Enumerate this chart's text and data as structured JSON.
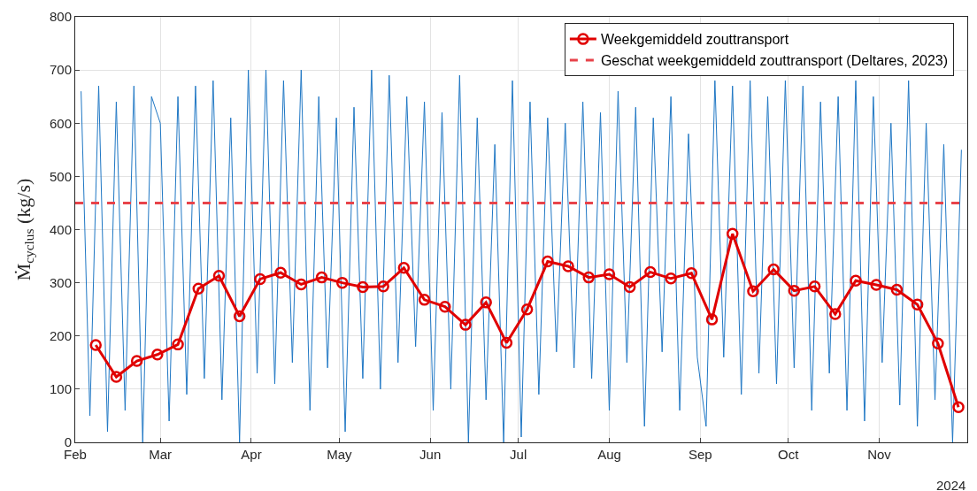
{
  "chart_data": {
    "type": "line",
    "ylabel": "Ṁ$_{cyclus}$ (kg/s)",
    "annotations": [
      "2024"
    ],
    "xlim": [
      "2024-02-01",
      "2024-12-01"
    ],
    "xticks": [
      {
        "value": "2024-02-01",
        "label": "Feb"
      },
      {
        "value": "2024-03-01",
        "label": "Mar"
      },
      {
        "value": "2024-04-01",
        "label": "Apr"
      },
      {
        "value": "2024-05-01",
        "label": "May"
      },
      {
        "value": "2024-06-01",
        "label": "Jun"
      },
      {
        "value": "2024-07-01",
        "label": "Jul"
      },
      {
        "value": "2024-08-01",
        "label": "Aug"
      },
      {
        "value": "2024-09-01",
        "label": "Sep"
      },
      {
        "value": "2024-10-01",
        "label": "Oct"
      },
      {
        "value": "2024-11-01",
        "label": "Nov"
      }
    ],
    "ylim": [
      0,
      800
    ],
    "yticks": [
      0,
      100,
      200,
      300,
      400,
      500,
      600,
      700,
      800
    ],
    "grid": true,
    "legend": "top right",
    "series": [
      {
        "color": "#1f77c4",
        "marker": "none",
        "x": [
          "2024-02-03",
          "2024-02-06",
          "2024-02-09",
          "2024-02-12",
          "2024-02-15",
          "2024-02-18",
          "2024-02-21",
          "2024-02-24",
          "2024-02-27",
          "2024-03-01",
          "2024-03-04",
          "2024-03-07",
          "2024-03-10",
          "2024-03-13",
          "2024-03-16",
          "2024-03-19",
          "2024-03-22",
          "2024-03-25",
          "2024-03-28",
          "2024-03-31",
          "2024-04-03",
          "2024-04-06",
          "2024-04-09",
          "2024-04-12",
          "2024-04-15",
          "2024-04-18",
          "2024-04-21",
          "2024-04-24",
          "2024-04-27",
          "2024-04-30",
          "2024-05-03",
          "2024-05-06",
          "2024-05-09",
          "2024-05-12",
          "2024-05-15",
          "2024-05-18",
          "2024-05-21",
          "2024-05-24",
          "2024-05-27",
          "2024-05-30",
          "2024-06-02",
          "2024-06-05",
          "2024-06-08",
          "2024-06-11",
          "2024-06-14",
          "2024-06-17",
          "2024-06-20",
          "2024-06-23",
          "2024-06-26",
          "2024-06-29",
          "2024-07-02",
          "2024-07-05",
          "2024-07-08",
          "2024-07-11",
          "2024-07-14",
          "2024-07-17",
          "2024-07-20",
          "2024-07-23",
          "2024-07-26",
          "2024-07-29",
          "2024-08-01",
          "2024-08-04",
          "2024-08-07",
          "2024-08-10",
          "2024-08-13",
          "2024-08-16",
          "2024-08-19",
          "2024-08-22",
          "2024-08-25",
          "2024-08-28",
          "2024-08-31",
          "2024-09-03",
          "2024-09-06",
          "2024-09-09",
          "2024-09-12",
          "2024-09-15",
          "2024-09-18",
          "2024-09-21",
          "2024-09-24",
          "2024-09-27",
          "2024-09-30",
          "2024-10-03",
          "2024-10-06",
          "2024-10-09",
          "2024-10-12",
          "2024-10-15",
          "2024-10-18",
          "2024-10-21",
          "2024-10-24",
          "2024-10-27",
          "2024-10-30",
          "2024-11-02",
          "2024-11-05",
          "2024-11-08",
          "2024-11-11",
          "2024-11-14",
          "2024-11-17",
          "2024-11-20",
          "2024-11-23",
          "2024-11-26",
          "2024-11-29"
        ],
        "values": [
          660,
          50,
          670,
          20,
          640,
          60,
          670,
          0,
          650,
          600,
          40,
          650,
          90,
          670,
          120,
          680,
          80,
          610,
          0,
          700,
          130,
          700,
          110,
          680,
          150,
          700,
          60,
          650,
          140,
          610,
          20,
          630,
          120,
          700,
          100,
          690,
          150,
          650,
          180,
          640,
          60,
          620,
          100,
          690,
          0,
          610,
          80,
          560,
          0,
          680,
          10,
          640,
          90,
          610,
          170,
          600,
          140,
          640,
          120,
          620,
          60,
          660,
          150,
          630,
          30,
          610,
          170,
          650,
          60,
          580,
          160,
          30,
          680,
          160,
          670,
          90,
          680,
          130,
          650,
          110,
          680,
          140,
          670,
          60,
          640,
          130,
          650,
          60,
          680,
          40,
          650,
          150,
          600,
          70,
          680,
          30,
          600,
          80,
          560,
          0,
          550
        ]
      },
      {
        "name": "Weekgemiddeld zouttransport",
        "color": "#e00000",
        "marker": "circle",
        "x": [
          "2024-02-08",
          "2024-02-15",
          "2024-02-22",
          "2024-02-29",
          "2024-03-07",
          "2024-03-14",
          "2024-03-21",
          "2024-03-28",
          "2024-04-04",
          "2024-04-11",
          "2024-04-18",
          "2024-04-25",
          "2024-05-02",
          "2024-05-09",
          "2024-05-16",
          "2024-05-23",
          "2024-05-30",
          "2024-06-06",
          "2024-06-13",
          "2024-06-20",
          "2024-06-27",
          "2024-07-04",
          "2024-07-11",
          "2024-07-18",
          "2024-07-25",
          "2024-08-01",
          "2024-08-08",
          "2024-08-15",
          "2024-08-22",
          "2024-08-29",
          "2024-09-05",
          "2024-09-12",
          "2024-09-19",
          "2024-09-26",
          "2024-10-03",
          "2024-10-10",
          "2024-10-17",
          "2024-10-24",
          "2024-10-31",
          "2024-11-07",
          "2024-11-14",
          "2024-11-21",
          "2024-11-28"
        ],
        "values": [
          183,
          123,
          153,
          165,
          184,
          289,
          313,
          237,
          307,
          319,
          297,
          310,
          300,
          292,
          293,
          328,
          268,
          255,
          221,
          263,
          187,
          250,
          340,
          331,
          310,
          316,
          292,
          320,
          308,
          318,
          231,
          392,
          284,
          325,
          285,
          293,
          241,
          304,
          296,
          287,
          259,
          186,
          66
        ]
      }
    ],
    "ref_lines": [
      {
        "axis": "y",
        "value": 450,
        "label": "Geschat weekgemiddeld zouttransport (Deltares, 2023)",
        "color": "#e8434a",
        "line_style": "dashed"
      }
    ]
  }
}
